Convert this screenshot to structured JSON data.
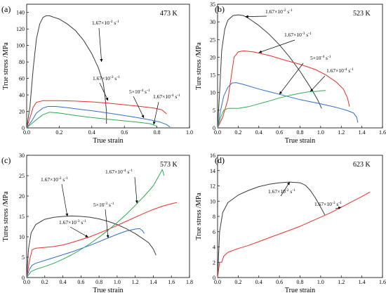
{
  "chart_data": [
    {
      "type": "line",
      "panel_label": "(a)",
      "temperature": "473 K",
      "xlabel": "True strain",
      "ylabel": "True stress /MPa",
      "xlim": [
        0,
        1.0
      ],
      "ylim": [
        0,
        150
      ],
      "xticks": [
        0.0,
        0.2,
        0.4,
        0.6,
        0.8,
        1.0
      ],
      "yticks": [
        0,
        20,
        40,
        60,
        80,
        100,
        120,
        140
      ],
      "xtick_labels": [
        "0.0",
        "0.2",
        "0.4",
        "0.6",
        "0.8",
        "1.0"
      ],
      "ytick_labels": [
        "0",
        "20",
        "40",
        "60",
        "80",
        "100",
        "120",
        "140"
      ],
      "series": [
        {
          "name": "1.67×10-2 s-1",
          "rate_base": "1.67×10",
          "rate_exp": "-2",
          "unit_base": "s",
          "unit_exp": "-1",
          "color": "#3a3a3a",
          "x": [
            0.0,
            0.02,
            0.04,
            0.06,
            0.08,
            0.1,
            0.12,
            0.14,
            0.17,
            0.2,
            0.25,
            0.3,
            0.35,
            0.4,
            0.44,
            0.47,
            0.48,
            0.49,
            0.49
          ],
          "y": [
            0,
            25,
            72,
            108,
            126,
            134,
            136,
            136,
            134,
            132,
            126,
            118,
            106,
            90,
            73,
            55,
            40,
            20,
            5
          ]
        },
        {
          "name": "1.67×10-3 s-1",
          "rate_base": "1.67×10",
          "rate_exp": "-3",
          "unit_base": "s",
          "unit_exp": "-1",
          "color": "#e8312a",
          "x": [
            0.0,
            0.02,
            0.04,
            0.06,
            0.1,
            0.2,
            0.3,
            0.4,
            0.5,
            0.6,
            0.7,
            0.78,
            0.83,
            0.86
          ],
          "y": [
            0,
            12,
            25,
            31,
            33,
            33,
            32.5,
            31.5,
            30,
            28,
            26,
            24,
            22,
            17
          ]
        },
        {
          "name": "5×10-4 s-1",
          "rate_base": "5×10",
          "rate_exp": "-4",
          "unit_base": "s",
          "unit_exp": "-1",
          "color": "#2f6fcf",
          "x": [
            0.0,
            0.03,
            0.06,
            0.1,
            0.13,
            0.18,
            0.25,
            0.35,
            0.45,
            0.55,
            0.65,
            0.75,
            0.82,
            0.86,
            0.88
          ],
          "y": [
            0,
            8,
            18,
            24,
            26,
            26,
            24.5,
            22,
            19.5,
            16.5,
            13.5,
            10,
            7,
            4,
            1
          ]
        },
        {
          "name": "1.67×10-4 s-1",
          "rate_base": "1.67×10",
          "rate_exp": "-4",
          "unit_base": "s",
          "unit_exp": "-1",
          "color": "#33a853",
          "x": [
            0.0,
            0.03,
            0.06,
            0.1,
            0.14,
            0.2,
            0.3,
            0.4,
            0.5,
            0.6,
            0.7,
            0.76,
            0.8
          ],
          "y": [
            0,
            5,
            10,
            16,
            19,
            18,
            15,
            12.5,
            10.5,
            8.5,
            6.5,
            5,
            2
          ]
        }
      ]
    },
    {
      "type": "line",
      "panel_label": "(b)",
      "temperature": "523 K",
      "xlabel": "True strain",
      "ylabel": "Ture stress /MPa",
      "xlim": [
        0,
        1.6
      ],
      "ylim": [
        0,
        35
      ],
      "xticks": [
        0.0,
        0.2,
        0.4,
        0.6,
        0.8,
        1.0,
        1.2,
        1.4,
        1.6
      ],
      "yticks": [
        0,
        5,
        10,
        15,
        20,
        25,
        30,
        35
      ],
      "xtick_labels": [
        "0.0",
        "0.2",
        "0.4",
        "0.6",
        "0.8",
        "1.0",
        "1.2",
        "1.4",
        "1.6"
      ],
      "ytick_labels": [
        "0",
        "5",
        "10",
        "15",
        "20",
        "25",
        "30",
        "35"
      ],
      "series": [
        {
          "name": "1.67×10-2 s-1",
          "rate_base": "1.67×10",
          "rate_exp": "-2",
          "unit_base": "s",
          "unit_exp": "-1",
          "color": "#3a3a3a",
          "x": [
            0.0,
            0.02,
            0.04,
            0.07,
            0.1,
            0.15,
            0.2,
            0.25,
            0.3,
            0.4,
            0.5,
            0.6,
            0.7,
            0.8,
            0.9,
            0.97,
            1.01
          ],
          "y": [
            0,
            10,
            22,
            28,
            30.5,
            31.8,
            32,
            31.8,
            31,
            29,
            26.5,
            23.5,
            20,
            16,
            11.5,
            8,
            5.5
          ]
        },
        {
          "name": "1.67×10-3 s-1",
          "rate_base": "1.67×10",
          "rate_exp": "-3",
          "unit_base": "s",
          "unit_exp": "-1",
          "color": "#e8312a",
          "x": [
            0.0,
            0.05,
            0.1,
            0.13,
            0.16,
            0.2,
            0.25,
            0.35,
            0.5,
            0.65,
            0.8,
            0.95,
            1.05,
            1.15,
            1.22,
            1.26,
            1.28
          ],
          "y": [
            0,
            3,
            8,
            14,
            20,
            21.5,
            21.8,
            21.5,
            20.5,
            19.2,
            18,
            16.5,
            15,
            13,
            11,
            8.5,
            6
          ]
        },
        {
          "name": "5×10-4 s-1",
          "rate_base": "5×10",
          "rate_exp": "-4",
          "unit_base": "s",
          "unit_exp": "-1",
          "color": "#2f6fcf",
          "x": [
            0.0,
            0.03,
            0.06,
            0.1,
            0.14,
            0.18,
            0.25,
            0.4,
            0.6,
            0.8,
            1.0,
            1.15,
            1.25,
            1.32,
            1.35,
            1.36
          ],
          "y": [
            0,
            5,
            9,
            11.5,
            12.7,
            12.8,
            12.3,
            11,
            9.5,
            8,
            6.8,
            5.8,
            5,
            4.2,
            3,
            1.5
          ]
        },
        {
          "name": "1.67×10-4 s-1",
          "rate_base": "1.67×10",
          "rate_exp": "-4",
          "unit_base": "s",
          "unit_exp": "-1",
          "color": "#33a853",
          "x": [
            0.0,
            0.03,
            0.06,
            0.1,
            0.2,
            0.3,
            0.4,
            0.5,
            0.6,
            0.7,
            0.8,
            0.9,
            0.95,
            1.0,
            1.05
          ],
          "y": [
            0,
            3,
            5,
            5.5,
            5.5,
            6,
            6.8,
            7.6,
            8.5,
            9.2,
            9.8,
            10.3,
            10.3,
            10.5,
            10.6
          ]
        }
      ]
    },
    {
      "type": "line",
      "panel_label": "(c)",
      "temperature": "573 K",
      "xlabel": "True strain",
      "ylabel": "Tures stress /MPa",
      "xlim": [
        0,
        1.8
      ],
      "ylim": [
        0,
        30
      ],
      "xticks": [
        0.0,
        0.2,
        0.4,
        0.6,
        0.8,
        1.0,
        1.2,
        1.4,
        1.6,
        1.8
      ],
      "yticks": [
        0,
        5,
        10,
        15,
        20,
        25,
        30
      ],
      "xtick_labels": [
        "0.0",
        "0.2",
        "0.4",
        "0.6",
        "0.8",
        "1.0",
        "1.2",
        "1.4",
        "1.6",
        "1.8"
      ],
      "ytick_labels": [
        "0",
        "5",
        "10",
        "15",
        "20",
        "25",
        "30"
      ],
      "series": [
        {
          "name": "1.67×10-2 s-1",
          "rate_base": "1.67×10",
          "rate_exp": "-2",
          "unit_base": "s",
          "unit_exp": "-1",
          "color": "#3a3a3a",
          "x": [
            0.0,
            0.02,
            0.05,
            0.1,
            0.2,
            0.3,
            0.4,
            0.5,
            0.6,
            0.7,
            0.8,
            0.9,
            1.0,
            1.1,
            1.2,
            1.3,
            1.35,
            1.4,
            1.43
          ],
          "y": [
            0,
            7,
            11,
            13,
            14.3,
            14.8,
            15,
            15.1,
            15,
            14.8,
            14.4,
            13.8,
            13,
            12,
            10.8,
            9.3,
            8.5,
            7,
            5.5
          ]
        },
        {
          "name": "1.67×10-3 s-1",
          "rate_base": "1.67×10",
          "rate_exp": "-3",
          "unit_base": "s",
          "unit_exp": "-1",
          "color": "#e8312a",
          "x": [
            0.0,
            0.03,
            0.06,
            0.1,
            0.2,
            0.3,
            0.4,
            0.5,
            0.6,
            0.7,
            0.8,
            0.9,
            1.0,
            1.1,
            1.2,
            1.3,
            1.4,
            1.5,
            1.6,
            1.66
          ],
          "y": [
            0,
            4,
            6.8,
            7.2,
            7.4,
            7.6,
            8,
            8.6,
            9.3,
            10,
            10.9,
            11.8,
            12.8,
            13.8,
            14.8,
            15.8,
            16.7,
            17.5,
            18.1,
            18.4
          ]
        },
        {
          "name": "5×10-3 s-1",
          "rate_base": "5×10",
          "rate_exp": "-3",
          "unit_base": "s",
          "unit_exp": "-1",
          "color": "#2f6fcf",
          "x": [
            0.0,
            0.03,
            0.06,
            0.1,
            0.2,
            0.3,
            0.4,
            0.5,
            0.6,
            0.7,
            0.8,
            0.9,
            1.0,
            1.1,
            1.2,
            1.25,
            1.28,
            1.3
          ],
          "y": [
            0,
            2,
            3,
            3.5,
            4.2,
            4.9,
            5.6,
            6.3,
            7.1,
            7.9,
            8.8,
            9.7,
            10.6,
            11.4,
            11.9,
            12,
            11.5,
            10.8
          ]
        },
        {
          "name": "1.67×10-4 s-1",
          "rate_base": "1.67×10",
          "rate_exp": "-4",
          "unit_base": "s",
          "unit_exp": "-1",
          "color": "#33a853",
          "x": [
            0.0,
            0.05,
            0.1,
            0.2,
            0.3,
            0.4,
            0.5,
            0.6,
            0.7,
            0.8,
            0.9,
            1.0,
            1.1,
            1.2,
            1.3,
            1.4,
            1.45,
            1.5,
            1.52
          ],
          "y": [
            0,
            1.5,
            2,
            2.7,
            3.5,
            4.5,
            5.6,
            6.9,
            8.3,
            9.9,
            11.6,
            13.5,
            15.5,
            17.7,
            20,
            22.5,
            24.5,
            26.5,
            25
          ]
        }
      ]
    },
    {
      "type": "line",
      "panel_label": "(d)",
      "temperature": "623 K",
      "xlabel": "True strain",
      "ylabel": "True stress /MPa",
      "xlim": [
        0,
        1.6
      ],
      "ylim": [
        0,
        16
      ],
      "xticks": [
        0.0,
        0.2,
        0.4,
        0.6,
        0.8,
        1.0,
        1.2,
        1.4,
        1.6
      ],
      "yticks": [
        0,
        2,
        4,
        6,
        8,
        10,
        12,
        14,
        16
      ],
      "xtick_labels": [
        "0.0",
        "0.2",
        "0.4",
        "0.6",
        "0.8",
        "1.0",
        "1.2",
        "1.4",
        "1.6"
      ],
      "ytick_labels": [
        "0",
        "2",
        "4",
        "6",
        "8",
        "10",
        "12",
        "14",
        "16"
      ],
      "series": [
        {
          "name": "1.67×10-2 s-1",
          "rate_base": "1.67×10",
          "rate_exp": "-2",
          "unit_base": "s",
          "unit_exp": "-1",
          "color": "#3a3a3a",
          "x": [
            0.0,
            0.02,
            0.05,
            0.1,
            0.2,
            0.3,
            0.4,
            0.5,
            0.6,
            0.7,
            0.8,
            0.85,
            0.9,
            0.95,
            1.0,
            1.04
          ],
          "y": [
            0,
            6,
            8.5,
            9.8,
            10.8,
            11.4,
            11.9,
            12.2,
            12.4,
            12.5,
            12.4,
            12.1,
            11.4,
            10.4,
            9.2,
            8.2
          ]
        },
        {
          "name": "1.67×10-3 s-1",
          "rate_base": "1.67×10",
          "rate_exp": "-3",
          "unit_base": "s",
          "unit_exp": "-1",
          "color": "#e8312a",
          "x": [
            0.0,
            0.02,
            0.04,
            0.06,
            0.1,
            0.2,
            0.3,
            0.4,
            0.5,
            0.6,
            0.7,
            0.8,
            0.9,
            1.0,
            1.1,
            1.2,
            1.3,
            1.4,
            1.48
          ],
          "y": [
            0,
            2,
            2,
            2.8,
            3.3,
            3.8,
            4.2,
            4.7,
            5.2,
            5.7,
            6.2,
            6.7,
            7.3,
            7.9,
            8.5,
            9.2,
            9.9,
            10.6,
            11.2
          ]
        }
      ]
    }
  ]
}
